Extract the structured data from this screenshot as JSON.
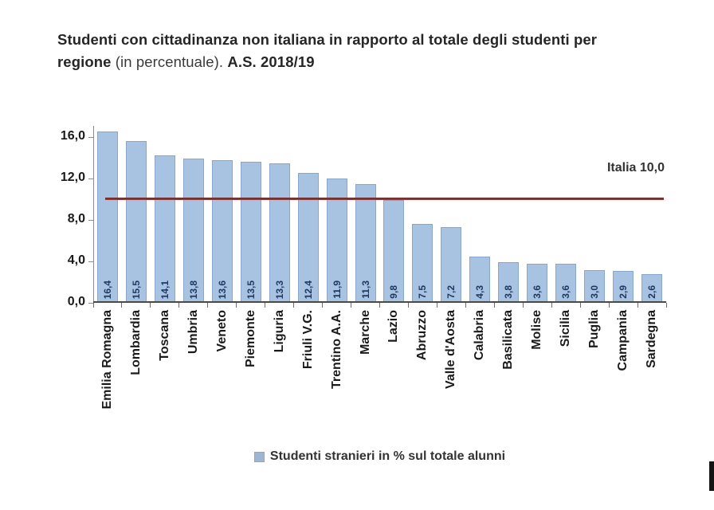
{
  "title": {
    "line1_bold": "Studenti con cittadinanza non italiana in rapporto al totale degli",
    "line2_bold": "studenti per regione",
    "line2_regular": " (in percentuale). ",
    "line2_bold_suffix": "A.S. 2018/19"
  },
  "legend": {
    "label": "Studenti stranieri in % sul totale alunni"
  },
  "chart_data": {
    "type": "bar",
    "title": "Studenti con cittadinanza non italiana in rapporto al totale degli studenti per regione (in percentuale). A.S. 2018/19",
    "categories": [
      "Emilia Romagna",
      "Lombardia",
      "Toscana",
      "Umbria",
      "Veneto",
      "Piemonte",
      "Liguria",
      "Friuli V.G.",
      "Trentino A.A.",
      "Marche",
      "Lazio",
      "Abruzzo",
      "Valle d'Aosta",
      "Calabria",
      "Basilicata",
      "Molise",
      "Sicilia",
      "Puglia",
      "Campania",
      "Sardegna"
    ],
    "values": [
      16.4,
      15.5,
      14.1,
      13.8,
      13.6,
      13.5,
      13.3,
      12.4,
      11.9,
      11.3,
      9.8,
      7.5,
      7.2,
      4.3,
      3.8,
      3.6,
      3.6,
      3.0,
      2.9,
      2.6
    ],
    "value_labels": [
      "16,4",
      "15,5",
      "14,1",
      "13,8",
      "13,6",
      "13,5",
      "13,3",
      "12,4",
      "11,9",
      "11,3",
      "9,8",
      "7,5",
      "7,2",
      "4,3",
      "3,8",
      "3,6",
      "3,6",
      "3,0",
      "2,9",
      "2,6"
    ],
    "xlabel": "",
    "ylabel": "",
    "ylim": [
      0,
      17.1
    ],
    "yticks": [
      0,
      4,
      8,
      12,
      16
    ],
    "ytick_labels": [
      "0,0",
      "4,0",
      "8,0",
      "12,0",
      "16,0"
    ],
    "grid": false,
    "legend_position": "bottom",
    "legend_label": "Studenti stranieri in % sul totale alunni",
    "reference_line": {
      "value": 10.0,
      "label": "Italia 10,0"
    }
  },
  "colors": {
    "bar_fill": "#a8c3e2",
    "bar_border": "#8aa6cd",
    "bar_value_label": "#1f3864",
    "reference_line": "#8c3836",
    "axis_line": "#4a4a4a",
    "text": "#333333"
  }
}
